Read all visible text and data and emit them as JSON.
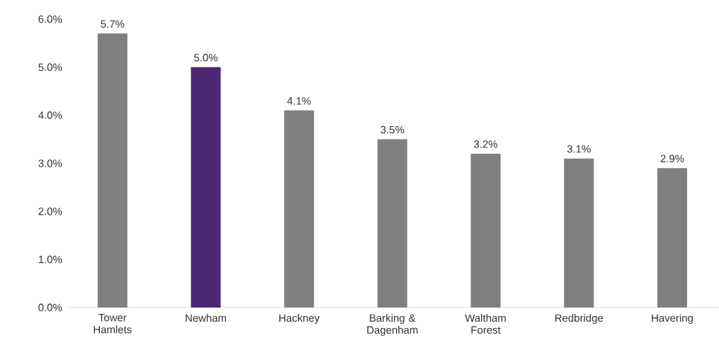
{
  "chart_data": {
    "type": "bar",
    "categories": [
      "Tower Hamlets",
      "Newham",
      "Hackney",
      "Barking & Dagenham",
      "Waltham Forest",
      "Redbridge",
      "Havering"
    ],
    "values": [
      5.7,
      5.0,
      4.1,
      3.5,
      3.2,
      3.1,
      2.9
    ],
    "colors": [
      "#7f7f7f",
      "#4a2874",
      "#7f7f7f",
      "#7f7f7f",
      "#7f7f7f",
      "#7f7f7f",
      "#7f7f7f"
    ],
    "value_labels": [
      "5.7%",
      "5.0%",
      "4.1%",
      "3.5%",
      "3.2%",
      "3.1%",
      "2.9%"
    ],
    "ylim": [
      0,
      6
    ],
    "yticks": [
      {
        "value": 0,
        "label": "0.0%"
      },
      {
        "value": 1,
        "label": "1.0%"
      },
      {
        "value": 2,
        "label": "2.0%"
      },
      {
        "value": 3,
        "label": "3.0%"
      },
      {
        "value": 4,
        "label": "4.0%"
      },
      {
        "value": 5,
        "label": "5.0%"
      },
      {
        "value": 6,
        "label": "6.0%"
      }
    ]
  }
}
